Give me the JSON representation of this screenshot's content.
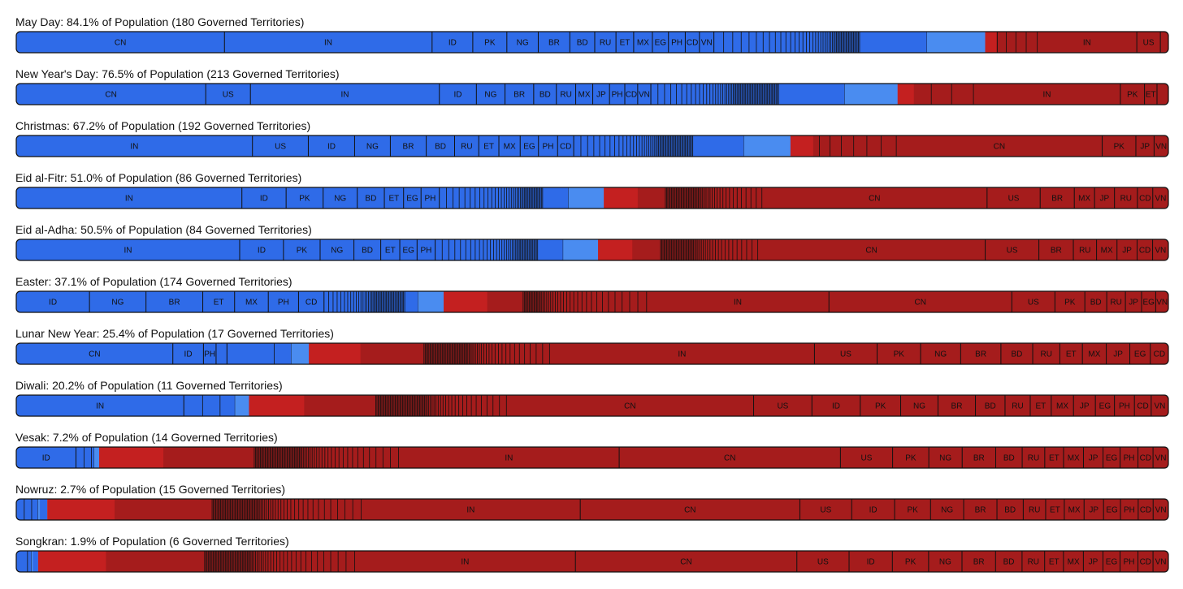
{
  "colors": {
    "observed": "#2f6be8",
    "observed_other": "#4a8cf0",
    "not_observed": "#a51c1c",
    "not_observed_other": "#c42020",
    "separator": "#111111"
  },
  "country_codes": {
    "cn": "CN",
    "in": "IN",
    "id": "ID",
    "pk": "PK",
    "ng": "NG",
    "br": "BR",
    "bd": "BD",
    "ru": "RU",
    "et": "ET",
    "mx": "MX",
    "eg": "EG",
    "ph": "PH",
    "cd": "CD",
    "vn": "VN",
    "jp": "JP",
    "us": "US"
  },
  "chart_data": [
    {
      "type": "bar",
      "title": "May Day: 84.1% of Population (180 Governed Territories)",
      "share_observed": 84.1,
      "observed": [
        "cn",
        "in",
        "id",
        "pk",
        "ng",
        "br",
        "bd",
        "ru",
        "et",
        "mx",
        "eg",
        "ph",
        "cd",
        "vn"
      ],
      "not_observed": [
        "jp",
        "us",
        "in"
      ],
      "observed_tail": 48,
      "not_observed_tail": 8
    },
    {
      "type": "bar",
      "title": "New Year's Day: 76.5% of Population (213 Governed Territories)",
      "share_observed": 76.5,
      "observed": [
        "cn",
        "us",
        "in",
        "id",
        "ng",
        "br",
        "bd",
        "ru",
        "mx",
        "jp",
        "ph",
        "cd",
        "vn"
      ],
      "not_observed": [
        "eg",
        "et",
        "pk",
        "in"
      ],
      "observed_tail": 60,
      "not_observed_tail": 6
    },
    {
      "type": "bar",
      "title": "Christmas: 67.2% of Population (192 Governed Territories)",
      "share_observed": 67.2,
      "observed": [
        "in",
        "us",
        "id",
        "ng",
        "br",
        "bd",
        "ru",
        "et",
        "mx",
        "eg",
        "ph",
        "cd"
      ],
      "not_observed": [
        "vn",
        "jp",
        "pk",
        "cn"
      ],
      "observed_tail": 52,
      "not_observed_tail": 12
    },
    {
      "type": "bar",
      "title": "Eid al-Fitr: 51.0% of Population (86 Governed Territories)",
      "share_observed": 51.0,
      "observed": [
        "in",
        "id",
        "pk",
        "ng",
        "bd",
        "et",
        "eg",
        "ph"
      ],
      "not_observed": [
        "vn",
        "cd",
        "ru",
        "jp",
        "mx",
        "br",
        "us",
        "cn"
      ],
      "observed_tail": 40,
      "not_observed_tail": 48
    },
    {
      "type": "bar",
      "title": "Eid al-Adha: 50.5% of Population (84 Governed Territories)",
      "share_observed": 50.5,
      "observed": [
        "in",
        "id",
        "pk",
        "ng",
        "bd",
        "et",
        "eg",
        "ph"
      ],
      "not_observed": [
        "vn",
        "cd",
        "jp",
        "mx",
        "ru",
        "br",
        "us",
        "cn"
      ],
      "observed_tail": 40,
      "not_observed_tail": 48
    },
    {
      "type": "bar",
      "title": "Easter: 37.1% of Population (174 Governed Territories)",
      "share_observed": 37.1,
      "observed": [
        "id",
        "ng",
        "br",
        "et",
        "mx",
        "ph",
        "cd"
      ],
      "not_observed": [
        "vn",
        "eg",
        "jp",
        "ru",
        "bd",
        "pk",
        "us",
        "cn",
        "in"
      ],
      "observed_tail": 44,
      "not_observed_tail": 40
    },
    {
      "type": "bar",
      "title": "Lunar New Year: 25.4% of Population (17 Governed Territories)",
      "share_observed": 25.4,
      "observed": [
        "cn",
        "id",
        "ph",
        "vn"
      ],
      "not_observed": [
        "cd",
        "eg",
        "jp",
        "mx",
        "et",
        "ru",
        "bd",
        "br",
        "ng",
        "pk",
        "us",
        "in"
      ],
      "observed_tail": 3,
      "not_observed_tail": 60
    },
    {
      "type": "bar",
      "title": "Diwali: 20.2% of Population (11 Governed Territories)",
      "share_observed": 20.2,
      "observed": [
        "in"
      ],
      "not_observed": [
        "vn",
        "cd",
        "ph",
        "eg",
        "jp",
        "mx",
        "et",
        "ru",
        "bd",
        "br",
        "ng",
        "pk",
        "id",
        "us",
        "cn"
      ],
      "observed_tail": 6,
      "not_observed_tail": 64
    },
    {
      "type": "bar",
      "title": "Vesak: 7.2% of Population (14 Governed Territories)",
      "share_observed": 7.2,
      "observed": [
        "id"
      ],
      "not_observed": [
        "vn",
        "cd",
        "ph",
        "eg",
        "jp",
        "mx",
        "et",
        "ru",
        "bd",
        "br",
        "ng",
        "pk",
        "us",
        "cn",
        "in"
      ],
      "observed_tail": 5,
      "not_observed_tail": 64
    },
    {
      "type": "bar",
      "title": "Nowruz: 2.7% of Population (15 Governed Territories)",
      "share_observed": 2.7,
      "observed": [],
      "not_observed": [
        "vn",
        "cd",
        "ph",
        "eg",
        "jp",
        "mx",
        "et",
        "ru",
        "bd",
        "br",
        "ng",
        "pk",
        "id",
        "us",
        "cn",
        "in"
      ],
      "observed_tail": 6,
      "not_observed_tail": 64
    },
    {
      "type": "bar",
      "title": "Songkran: 1.9% of Population (6 Governed Territories)",
      "share_observed": 1.9,
      "observed": [],
      "not_observed": [
        "vn",
        "cd",
        "ph",
        "eg",
        "jp",
        "mx",
        "et",
        "ru",
        "bd",
        "br",
        "ng",
        "pk",
        "id",
        "us",
        "cn",
        "in"
      ],
      "observed_tail": 3,
      "not_observed_tail": 64
    }
  ]
}
